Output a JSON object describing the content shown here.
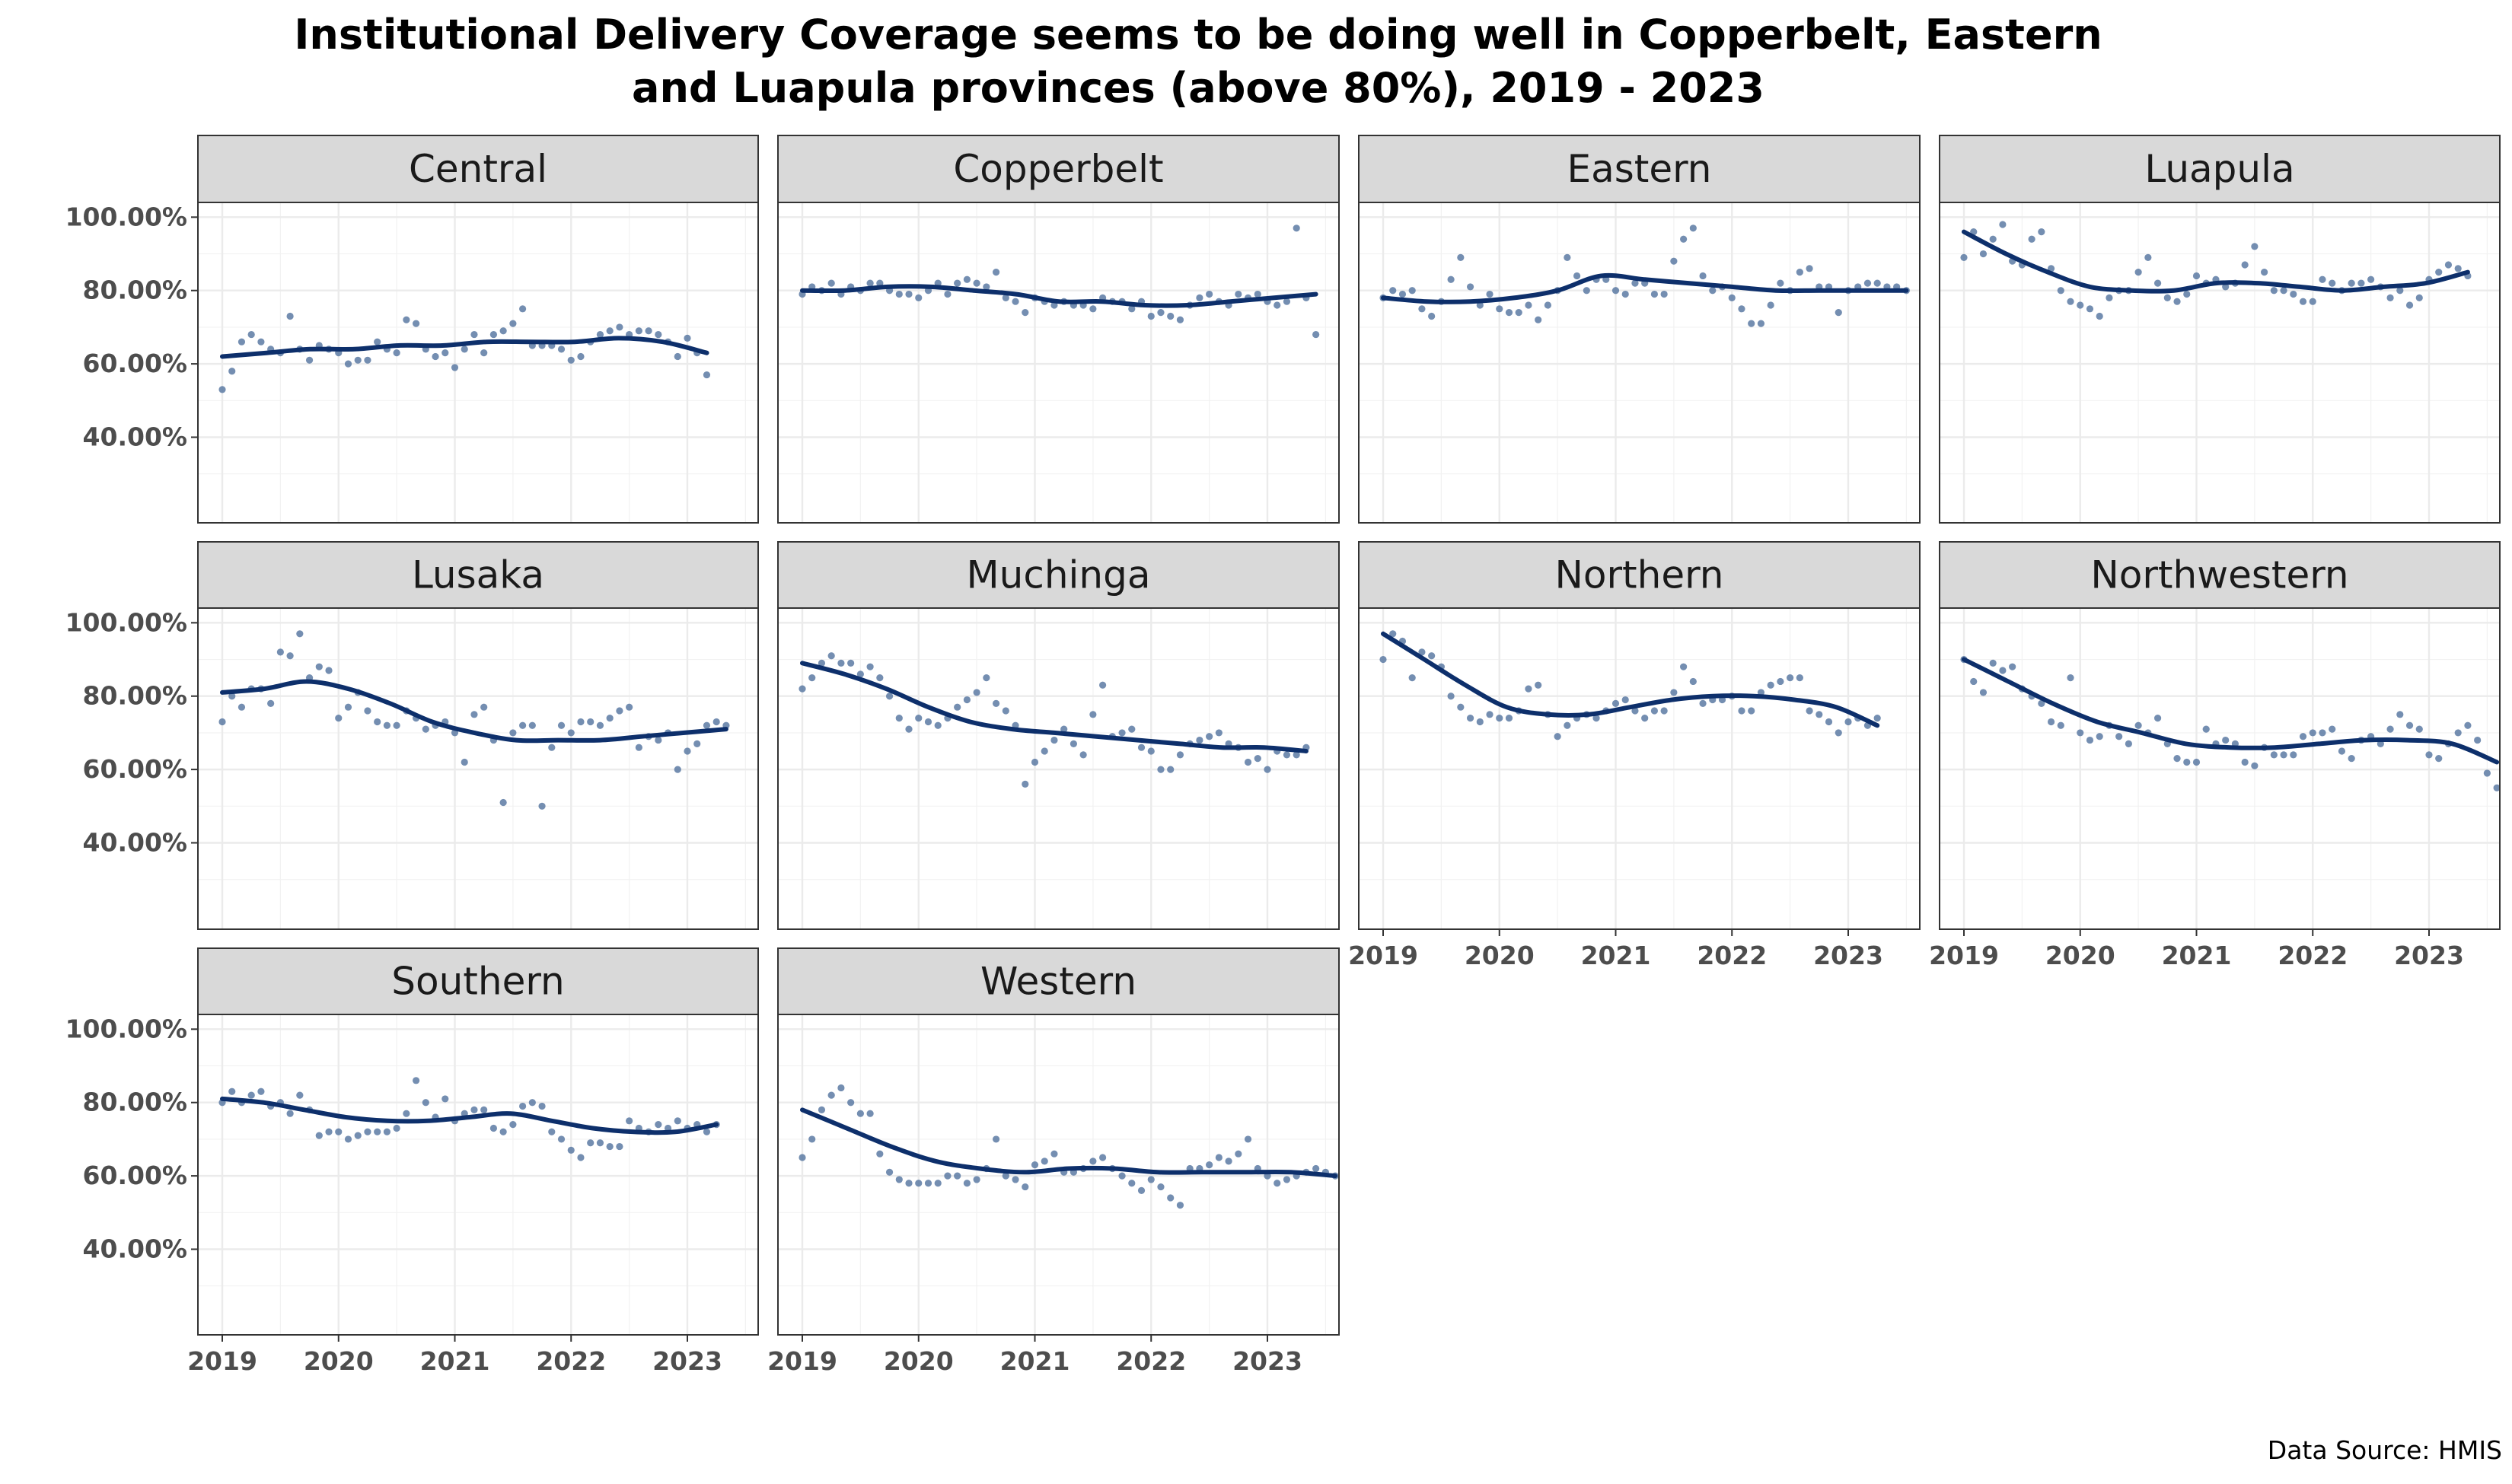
{
  "title": {
    "line1": "Institutional Delivery Coverage seems to be doing well in Copperbelt, Eastern",
    "line2": "and Luapula provinces (above 80%), 2019 - 2023"
  },
  "caption": "Data Source: HMIS",
  "chart_data": {
    "type": "scatter",
    "title": "Institutional Delivery Coverage seems to be doing well in Copperbelt, Eastern and Luapula provinces (above 80%), 2019 - 2023",
    "xlabel": "",
    "ylabel": "",
    "x_ticks": [
      "2019",
      "2020",
      "2021",
      "2022",
      "2023"
    ],
    "y_ticks": [
      "40.00%",
      "60.00%",
      "80.00%",
      "100.00%"
    ],
    "xlim": [
      "2018-12",
      "2023-08"
    ],
    "ylim": [
      0,
      105
    ],
    "grid": true,
    "smooth_line": true,
    "colors": {
      "points": "#5c7aa3",
      "line": "#0d2f6b",
      "strip": "#d9d9d9",
      "grid": "#ebebeb"
    },
    "x_start": "2019-01",
    "panels": [
      {
        "name": "Central",
        "points": [
          53,
          58,
          66,
          68,
          66,
          64,
          63,
          73,
          64,
          61,
          65,
          64,
          63,
          60,
          61,
          61,
          66,
          64,
          63,
          72,
          71,
          64,
          62,
          63,
          59,
          64,
          68,
          63,
          68,
          69,
          71,
          75,
          65,
          65,
          65,
          64,
          61,
          62,
          66,
          68,
          69,
          70,
          68,
          69,
          69,
          68,
          66,
          62,
          67,
          63,
          57
        ],
        "smooth": [
          62,
          63,
          64,
          64,
          65,
          65,
          66,
          66,
          66,
          67,
          66,
          63
        ]
      },
      {
        "name": "Copperbelt",
        "points": [
          79,
          81,
          80,
          82,
          79,
          81,
          80,
          82,
          82,
          80,
          79,
          79,
          78,
          80,
          82,
          79,
          82,
          83,
          82,
          81,
          85,
          78,
          77,
          74,
          78,
          77,
          76,
          77,
          76,
          76,
          75,
          78,
          77,
          77,
          75,
          77,
          73,
          74,
          73,
          72,
          76,
          78,
          79,
          77,
          76,
          79,
          78,
          79,
          77,
          76,
          77,
          97,
          78,
          68
        ],
        "smooth": [
          80,
          80,
          81,
          81,
          80,
          79,
          77,
          77,
          76,
          76,
          77,
          78,
          79
        ]
      },
      {
        "name": "Eastern",
        "points": [
          78,
          80,
          79,
          80,
          75,
          73,
          77,
          83,
          89,
          81,
          76,
          79,
          75,
          74,
          74,
          76,
          72,
          76,
          80,
          89,
          84,
          80,
          83,
          83,
          80,
          79,
          82,
          82,
          79,
          79,
          88,
          94,
          97,
          84,
          80,
          81,
          78,
          75,
          71,
          71,
          76,
          82,
          80,
          85,
          86,
          81,
          81,
          74,
          80,
          81,
          82,
          82,
          81,
          81,
          80
        ],
        "smooth": [
          78,
          77,
          77,
          78,
          80,
          84,
          83,
          82,
          81,
          80,
          80,
          80,
          80
        ]
      },
      {
        "name": "Luapula",
        "points": [
          89,
          96,
          90,
          94,
          98,
          88,
          87,
          94,
          96,
          86,
          80,
          77,
          76,
          75,
          73,
          78,
          80,
          80,
          85,
          89,
          82,
          78,
          77,
          79,
          84,
          82,
          83,
          81,
          82,
          87,
          92,
          85,
          80,
          80,
          79,
          77,
          77,
          83,
          82,
          80,
          82,
          82,
          83,
          81,
          78,
          80,
          76,
          78,
          83,
          85,
          87,
          86,
          84
        ],
        "smooth": [
          96,
          90,
          85,
          81,
          80,
          80,
          82,
          82,
          81,
          80,
          81,
          82,
          85
        ]
      },
      {
        "name": "Lusaka",
        "points": [
          73,
          80,
          77,
          82,
          82,
          78,
          92,
          91,
          97,
          85,
          88,
          87,
          74,
          77,
          81,
          76,
          73,
          72,
          72,
          76,
          74,
          71,
          72,
          73,
          70,
          62,
          75,
          77,
          68,
          51,
          70,
          72,
          72,
          50,
          66,
          72,
          70,
          73,
          73,
          72,
          74,
          76,
          77,
          66,
          69,
          68,
          70,
          60,
          65,
          67,
          72,
          73,
          72
        ],
        "smooth": [
          81,
          82,
          84,
          82,
          78,
          73,
          70,
          68,
          68,
          68,
          69,
          70,
          71
        ]
      },
      {
        "name": "Muchinga",
        "points": [
          82,
          85,
          89,
          91,
          89,
          89,
          86,
          88,
          85,
          80,
          74,
          71,
          74,
          73,
          72,
          74,
          77,
          79,
          81,
          85,
          78,
          76,
          72,
          56,
          62,
          65,
          68,
          71,
          67,
          64,
          75,
          83,
          69,
          70,
          71,
          66,
          65,
          60,
          60,
          64,
          67,
          68,
          69,
          70,
          67,
          66,
          62,
          63,
          60,
          65,
          64,
          64,
          66
        ],
        "smooth": [
          89,
          86,
          82,
          77,
          73,
          71,
          70,
          69,
          68,
          67,
          66,
          66,
          65
        ]
      },
      {
        "name": "Northern",
        "points": [
          90,
          97,
          95,
          85,
          92,
          91,
          88,
          80,
          77,
          74,
          73,
          75,
          74,
          74,
          76,
          82,
          83,
          75,
          69,
          72,
          74,
          75,
          74,
          76,
          78,
          79,
          76,
          74,
          76,
          76,
          81,
          88,
          84,
          78,
          79,
          79,
          80,
          76,
          76,
          81,
          83,
          84,
          85,
          85,
          76,
          75,
          73,
          70,
          73,
          74,
          72,
          74
        ],
        "smooth": [
          97,
          90,
          83,
          77,
          75,
          75,
          77,
          79,
          80,
          80,
          79,
          77,
          72
        ]
      },
      {
        "name": "Northwestern",
        "points": [
          90,
          84,
          81,
          89,
          87,
          88,
          82,
          80,
          78,
          73,
          72,
          85,
          70,
          68,
          69,
          72,
          69,
          67,
          72,
          70,
          74,
          67,
          63,
          62,
          62,
          71,
          67,
          68,
          67,
          62,
          61,
          66,
          64,
          64,
          64,
          69,
          70,
          70,
          71,
          65,
          63,
          68,
          69,
          67,
          71,
          75,
          72,
          71,
          64,
          63,
          67,
          70,
          72,
          68,
          59,
          55
        ],
        "smooth": [
          90,
          84,
          78,
          73,
          70,
          67,
          66,
          66,
          67,
          68,
          68,
          67,
          62
        ]
      },
      {
        "name": "Southern",
        "points": [
          80,
          83,
          80,
          82,
          83,
          79,
          80,
          77,
          82,
          78,
          71,
          72,
          72,
          70,
          71,
          72,
          72,
          72,
          73,
          77,
          86,
          80,
          76,
          81,
          75,
          77,
          78,
          78,
          73,
          72,
          74,
          79,
          80,
          79,
          72,
          70,
          67,
          65,
          69,
          69,
          68,
          68,
          75,
          73,
          72,
          74,
          73,
          75,
          73,
          74,
          72,
          74
        ],
        "smooth": [
          81,
          80,
          78,
          76,
          75,
          75,
          76,
          77,
          75,
          73,
          72,
          72,
          74
        ]
      },
      {
        "name": "Western",
        "points": [
          65,
          70,
          78,
          82,
          84,
          80,
          77,
          77,
          66,
          61,
          59,
          58,
          58,
          58,
          58,
          60,
          60,
          58,
          59,
          62,
          70,
          60,
          59,
          57,
          63,
          64,
          66,
          61,
          61,
          62,
          64,
          65,
          62,
          60,
          58,
          56,
          59,
          57,
          54,
          52,
          62,
          62,
          63,
          65,
          64,
          66,
          70,
          62,
          60,
          58,
          59,
          60,
          61,
          62,
          61,
          60
        ],
        "smooth": [
          78,
          73,
          68,
          64,
          62,
          61,
          62,
          62,
          61,
          61,
          61,
          61,
          60
        ]
      }
    ]
  }
}
